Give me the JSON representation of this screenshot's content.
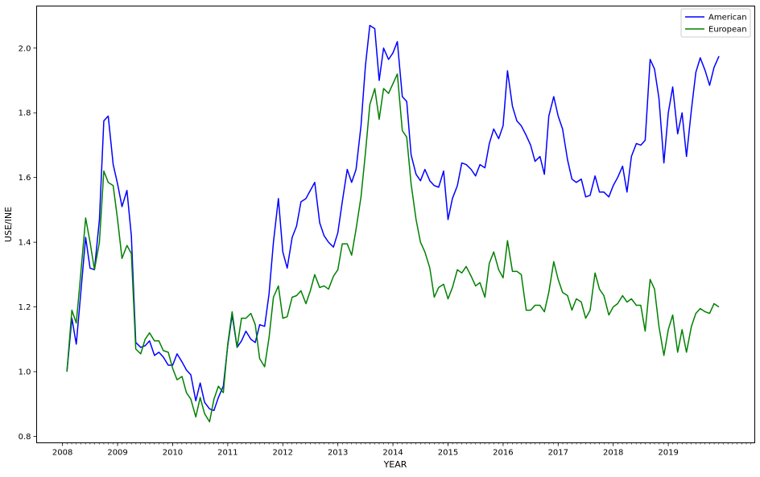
{
  "chart_data": {
    "type": "line",
    "xlabel": "YEAR",
    "ylabel": "USE/INE",
    "xlim": [
      2007.53,
      2020.57
    ],
    "ylim": [
      0.78,
      2.13
    ],
    "x_ticks": [
      2008,
      2009,
      2010,
      2011,
      2012,
      2013,
      2014,
      2015,
      2016,
      2017,
      2018,
      2019
    ],
    "y_ticks": [
      "0.8",
      "1.0",
      "1.2",
      "1.4",
      "1.6",
      "1.8",
      "2.0"
    ],
    "legend_position": "top-right",
    "series": [
      {
        "name": "American",
        "color": "#0000ff",
        "points": [
          [
            2008.08,
            1.0
          ],
          [
            2008.17,
            1.165
          ],
          [
            2008.25,
            1.085
          ],
          [
            2008.33,
            1.24
          ],
          [
            2008.42,
            1.415
          ],
          [
            2008.5,
            1.32
          ],
          [
            2008.58,
            1.315
          ],
          [
            2008.67,
            1.47
          ],
          [
            2008.75,
            1.775
          ],
          [
            2008.83,
            1.79
          ],
          [
            2008.92,
            1.64
          ],
          [
            2009.0,
            1.58
          ],
          [
            2009.08,
            1.51
          ],
          [
            2009.17,
            1.56
          ],
          [
            2009.25,
            1.42
          ],
          [
            2009.33,
            1.09
          ],
          [
            2009.42,
            1.075
          ],
          [
            2009.5,
            1.08
          ],
          [
            2009.58,
            1.095
          ],
          [
            2009.67,
            1.05
          ],
          [
            2009.75,
            1.06
          ],
          [
            2009.83,
            1.045
          ],
          [
            2009.92,
            1.02
          ],
          [
            2010.0,
            1.02
          ],
          [
            2010.08,
            1.055
          ],
          [
            2010.17,
            1.03
          ],
          [
            2010.25,
            1.005
          ],
          [
            2010.33,
            0.99
          ],
          [
            2010.42,
            0.91
          ],
          [
            2010.5,
            0.965
          ],
          [
            2010.58,
            0.905
          ],
          [
            2010.67,
            0.885
          ],
          [
            2010.75,
            0.88
          ],
          [
            2010.83,
            0.92
          ],
          [
            2010.92,
            0.955
          ],
          [
            2011.0,
            1.08
          ],
          [
            2011.08,
            1.175
          ],
          [
            2011.17,
            1.075
          ],
          [
            2011.25,
            1.095
          ],
          [
            2011.33,
            1.125
          ],
          [
            2011.42,
            1.1
          ],
          [
            2011.5,
            1.09
          ],
          [
            2011.58,
            1.145
          ],
          [
            2011.67,
            1.14
          ],
          [
            2011.75,
            1.24
          ],
          [
            2011.83,
            1.4
          ],
          [
            2011.92,
            1.535
          ],
          [
            2012.0,
            1.37
          ],
          [
            2012.08,
            1.32
          ],
          [
            2012.17,
            1.415
          ],
          [
            2012.25,
            1.45
          ],
          [
            2012.33,
            1.525
          ],
          [
            2012.42,
            1.535
          ],
          [
            2012.5,
            1.56
          ],
          [
            2012.58,
            1.585
          ],
          [
            2012.67,
            1.46
          ],
          [
            2012.75,
            1.42
          ],
          [
            2012.83,
            1.4
          ],
          [
            2012.92,
            1.385
          ],
          [
            2013.0,
            1.43
          ],
          [
            2013.08,
            1.525
          ],
          [
            2013.17,
            1.625
          ],
          [
            2013.25,
            1.585
          ],
          [
            2013.33,
            1.625
          ],
          [
            2013.42,
            1.76
          ],
          [
            2013.5,
            1.945
          ],
          [
            2013.58,
            2.07
          ],
          [
            2013.67,
            2.06
          ],
          [
            2013.75,
            1.9
          ],
          [
            2013.83,
            2.0
          ],
          [
            2013.92,
            1.965
          ],
          [
            2014.0,
            1.985
          ],
          [
            2014.08,
            2.02
          ],
          [
            2014.17,
            1.85
          ],
          [
            2014.25,
            1.835
          ],
          [
            2014.33,
            1.67
          ],
          [
            2014.42,
            1.61
          ],
          [
            2014.5,
            1.59
          ],
          [
            2014.58,
            1.625
          ],
          [
            2014.67,
            1.59
          ],
          [
            2014.75,
            1.575
          ],
          [
            2014.83,
            1.57
          ],
          [
            2014.92,
            1.62
          ],
          [
            2015.0,
            1.47
          ],
          [
            2015.08,
            1.535
          ],
          [
            2015.17,
            1.575
          ],
          [
            2015.25,
            1.645
          ],
          [
            2015.33,
            1.64
          ],
          [
            2015.42,
            1.625
          ],
          [
            2015.5,
            1.605
          ],
          [
            2015.58,
            1.64
          ],
          [
            2015.67,
            1.63
          ],
          [
            2015.75,
            1.705
          ],
          [
            2015.83,
            1.75
          ],
          [
            2015.92,
            1.72
          ],
          [
            2016.0,
            1.76
          ],
          [
            2016.08,
            1.93
          ],
          [
            2016.17,
            1.82
          ],
          [
            2016.25,
            1.775
          ],
          [
            2016.33,
            1.76
          ],
          [
            2016.42,
            1.73
          ],
          [
            2016.5,
            1.7
          ],
          [
            2016.58,
            1.65
          ],
          [
            2016.67,
            1.665
          ],
          [
            2016.75,
            1.61
          ],
          [
            2016.83,
            1.79
          ],
          [
            2016.92,
            1.85
          ],
          [
            2017.0,
            1.79
          ],
          [
            2017.08,
            1.75
          ],
          [
            2017.17,
            1.655
          ],
          [
            2017.25,
            1.595
          ],
          [
            2017.33,
            1.585
          ],
          [
            2017.42,
            1.595
          ],
          [
            2017.5,
            1.54
          ],
          [
            2017.58,
            1.545
          ],
          [
            2017.67,
            1.605
          ],
          [
            2017.75,
            1.555
          ],
          [
            2017.83,
            1.555
          ],
          [
            2017.92,
            1.54
          ],
          [
            2018.0,
            1.575
          ],
          [
            2018.08,
            1.6
          ],
          [
            2018.17,
            1.635
          ],
          [
            2018.25,
            1.555
          ],
          [
            2018.33,
            1.665
          ],
          [
            2018.42,
            1.705
          ],
          [
            2018.5,
            1.7
          ],
          [
            2018.58,
            1.715
          ],
          [
            2018.67,
            1.965
          ],
          [
            2018.75,
            1.935
          ],
          [
            2018.83,
            1.845
          ],
          [
            2018.92,
            1.645
          ],
          [
            2019.0,
            1.8
          ],
          [
            2019.08,
            1.88
          ],
          [
            2019.17,
            1.735
          ],
          [
            2019.25,
            1.8
          ],
          [
            2019.33,
            1.665
          ],
          [
            2019.42,
            1.81
          ],
          [
            2019.5,
            1.925
          ],
          [
            2019.58,
            1.97
          ],
          [
            2019.67,
            1.93
          ],
          [
            2019.75,
            1.885
          ],
          [
            2019.83,
            1.94
          ],
          [
            2019.92,
            1.975
          ]
        ]
      },
      {
        "name": "European",
        "color": "#008000",
        "points": [
          [
            2008.08,
            1.0
          ],
          [
            2008.17,
            1.19
          ],
          [
            2008.25,
            1.15
          ],
          [
            2008.33,
            1.3
          ],
          [
            2008.42,
            1.475
          ],
          [
            2008.5,
            1.4
          ],
          [
            2008.58,
            1.315
          ],
          [
            2008.67,
            1.4
          ],
          [
            2008.75,
            1.62
          ],
          [
            2008.83,
            1.585
          ],
          [
            2008.92,
            1.575
          ],
          [
            2009.0,
            1.47
          ],
          [
            2009.08,
            1.35
          ],
          [
            2009.17,
            1.39
          ],
          [
            2009.25,
            1.365
          ],
          [
            2009.33,
            1.07
          ],
          [
            2009.42,
            1.055
          ],
          [
            2009.5,
            1.1
          ],
          [
            2009.58,
            1.12
          ],
          [
            2009.67,
            1.095
          ],
          [
            2009.75,
            1.095
          ],
          [
            2009.83,
            1.065
          ],
          [
            2009.92,
            1.06
          ],
          [
            2010.0,
            1.01
          ],
          [
            2010.08,
            0.975
          ],
          [
            2010.17,
            0.985
          ],
          [
            2010.25,
            0.935
          ],
          [
            2010.33,
            0.915
          ],
          [
            2010.42,
            0.86
          ],
          [
            2010.5,
            0.92
          ],
          [
            2010.58,
            0.87
          ],
          [
            2010.67,
            0.845
          ],
          [
            2010.75,
            0.915
          ],
          [
            2010.83,
            0.955
          ],
          [
            2010.92,
            0.935
          ],
          [
            2011.0,
            1.085
          ],
          [
            2011.08,
            1.185
          ],
          [
            2011.17,
            1.075
          ],
          [
            2011.25,
            1.165
          ],
          [
            2011.33,
            1.165
          ],
          [
            2011.42,
            1.18
          ],
          [
            2011.5,
            1.145
          ],
          [
            2011.58,
            1.04
          ],
          [
            2011.67,
            1.015
          ],
          [
            2011.75,
            1.105
          ],
          [
            2011.83,
            1.23
          ],
          [
            2011.92,
            1.265
          ],
          [
            2012.0,
            1.165
          ],
          [
            2012.08,
            1.17
          ],
          [
            2012.17,
            1.23
          ],
          [
            2012.25,
            1.235
          ],
          [
            2012.33,
            1.25
          ],
          [
            2012.42,
            1.21
          ],
          [
            2012.5,
            1.25
          ],
          [
            2012.58,
            1.3
          ],
          [
            2012.67,
            1.26
          ],
          [
            2012.75,
            1.265
          ],
          [
            2012.83,
            1.255
          ],
          [
            2012.92,
            1.295
          ],
          [
            2013.0,
            1.315
          ],
          [
            2013.08,
            1.395
          ],
          [
            2013.17,
            1.395
          ],
          [
            2013.25,
            1.36
          ],
          [
            2013.33,
            1.44
          ],
          [
            2013.42,
            1.54
          ],
          [
            2013.5,
            1.675
          ],
          [
            2013.58,
            1.825
          ],
          [
            2013.67,
            1.875
          ],
          [
            2013.75,
            1.78
          ],
          [
            2013.83,
            1.875
          ],
          [
            2013.92,
            1.86
          ],
          [
            2014.0,
            1.89
          ],
          [
            2014.08,
            1.92
          ],
          [
            2014.17,
            1.745
          ],
          [
            2014.25,
            1.725
          ],
          [
            2014.33,
            1.58
          ],
          [
            2014.42,
            1.47
          ],
          [
            2014.5,
            1.4
          ],
          [
            2014.58,
            1.37
          ],
          [
            2014.67,
            1.32
          ],
          [
            2014.75,
            1.23
          ],
          [
            2014.83,
            1.26
          ],
          [
            2014.92,
            1.27
          ],
          [
            2015.0,
            1.225
          ],
          [
            2015.08,
            1.26
          ],
          [
            2015.17,
            1.315
          ],
          [
            2015.25,
            1.305
          ],
          [
            2015.33,
            1.325
          ],
          [
            2015.42,
            1.295
          ],
          [
            2015.5,
            1.265
          ],
          [
            2015.58,
            1.275
          ],
          [
            2015.67,
            1.23
          ],
          [
            2015.75,
            1.335
          ],
          [
            2015.83,
            1.37
          ],
          [
            2015.92,
            1.315
          ],
          [
            2016.0,
            1.29
          ],
          [
            2016.08,
            1.405
          ],
          [
            2016.17,
            1.31
          ],
          [
            2016.25,
            1.31
          ],
          [
            2016.33,
            1.3
          ],
          [
            2016.42,
            1.19
          ],
          [
            2016.5,
            1.19
          ],
          [
            2016.58,
            1.205
          ],
          [
            2016.67,
            1.205
          ],
          [
            2016.75,
            1.185
          ],
          [
            2016.83,
            1.245
          ],
          [
            2016.92,
            1.34
          ],
          [
            2017.0,
            1.285
          ],
          [
            2017.08,
            1.245
          ],
          [
            2017.17,
            1.235
          ],
          [
            2017.25,
            1.19
          ],
          [
            2017.33,
            1.225
          ],
          [
            2017.42,
            1.215
          ],
          [
            2017.5,
            1.165
          ],
          [
            2017.58,
            1.19
          ],
          [
            2017.67,
            1.305
          ],
          [
            2017.75,
            1.255
          ],
          [
            2017.83,
            1.235
          ],
          [
            2017.92,
            1.175
          ],
          [
            2018.0,
            1.2
          ],
          [
            2018.08,
            1.21
          ],
          [
            2018.17,
            1.235
          ],
          [
            2018.25,
            1.215
          ],
          [
            2018.33,
            1.225
          ],
          [
            2018.42,
            1.205
          ],
          [
            2018.5,
            1.205
          ],
          [
            2018.58,
            1.125
          ],
          [
            2018.67,
            1.285
          ],
          [
            2018.75,
            1.255
          ],
          [
            2018.83,
            1.14
          ],
          [
            2018.92,
            1.05
          ],
          [
            2019.0,
            1.13
          ],
          [
            2019.08,
            1.175
          ],
          [
            2019.17,
            1.06
          ],
          [
            2019.25,
            1.13
          ],
          [
            2019.33,
            1.06
          ],
          [
            2019.42,
            1.14
          ],
          [
            2019.5,
            1.18
          ],
          [
            2019.58,
            1.195
          ],
          [
            2019.67,
            1.185
          ],
          [
            2019.75,
            1.18
          ],
          [
            2019.83,
            1.21
          ],
          [
            2019.92,
            1.2
          ]
        ]
      }
    ]
  }
}
